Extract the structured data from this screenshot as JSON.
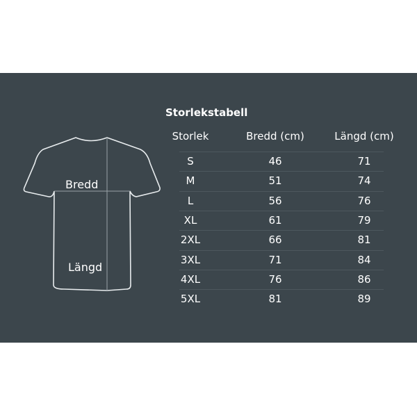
{
  "diagram": {
    "width_label": "Bredd",
    "length_label": "Längd"
  },
  "table": {
    "title": "Storlekstabell",
    "headers": [
      "Storlek",
      "Bredd (cm)",
      "Längd (cm)"
    ],
    "rows": [
      [
        "S",
        "46",
        "71"
      ],
      [
        "M",
        "51",
        "74"
      ],
      [
        "L",
        "56",
        "76"
      ],
      [
        "XL",
        "61",
        "79"
      ],
      [
        "2XL",
        "66",
        "81"
      ],
      [
        "3XL",
        "71",
        "84"
      ],
      [
        "4XL",
        "76",
        "86"
      ],
      [
        "5XL",
        "81",
        "89"
      ]
    ]
  },
  "colors": {
    "background": "#3c464c",
    "text": "#ffffff"
  }
}
